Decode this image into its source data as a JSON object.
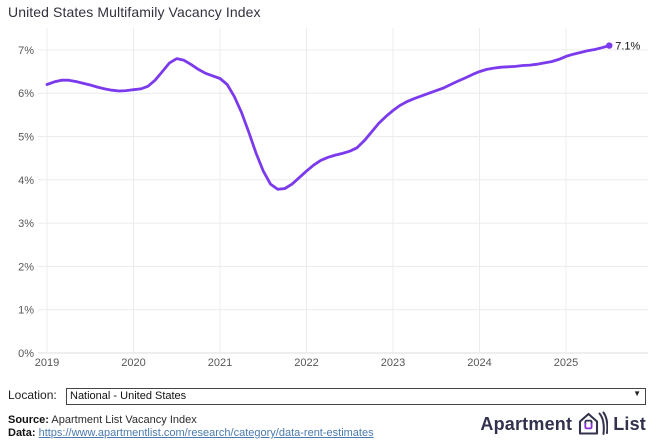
{
  "title": "United States Multifamily Vacancy Index",
  "chart_data": {
    "type": "line",
    "title": "United States Multifamily Vacancy Index",
    "series_name": "National - United States",
    "frequency": "monthly",
    "start_year": 2019,
    "start_month": 1,
    "values": [
      6.2,
      6.26,
      6.3,
      6.3,
      6.27,
      6.23,
      6.19,
      6.14,
      6.1,
      6.07,
      6.05,
      6.06,
      6.08,
      6.1,
      6.16,
      6.3,
      6.5,
      6.7,
      6.8,
      6.76,
      6.66,
      6.55,
      6.46,
      6.4,
      6.34,
      6.2,
      5.92,
      5.55,
      5.1,
      4.62,
      4.2,
      3.9,
      3.78,
      3.8,
      3.9,
      4.05,
      4.2,
      4.34,
      4.45,
      4.52,
      4.57,
      4.61,
      4.66,
      4.74,
      4.9,
      5.1,
      5.3,
      5.46,
      5.6,
      5.72,
      5.81,
      5.88,
      5.94,
      6.0,
      6.06,
      6.12,
      6.2,
      6.28,
      6.35,
      6.43,
      6.5,
      6.55,
      6.58,
      6.6,
      6.61,
      6.62,
      6.64,
      6.65,
      6.67,
      6.7,
      6.73,
      6.78,
      6.85,
      6.9,
      6.94,
      6.98,
      7.01,
      7.05,
      7.1
    ],
    "end_label": "7.1%",
    "last_value": 7.1,
    "x_ticks": [
      "2019",
      "2020",
      "2021",
      "2022",
      "2023",
      "2024",
      "2025"
    ],
    "y_ticks": [
      0,
      1,
      2,
      3,
      4,
      5,
      6,
      7
    ],
    "y_unit": "%",
    "ylim": [
      0,
      7.5
    ],
    "grid": true,
    "legend": false,
    "line_color": "#7c3aed",
    "grid_color": "#ececec",
    "zero_line_color": "#dcdcdc"
  },
  "controls": {
    "location_label": "Location:",
    "location_value": "National - United States"
  },
  "footer": {
    "source_label": "Source:",
    "source_text": " Apartment List Vacancy Index",
    "data_label": "Data:",
    "data_url": "https://www.apartmentlist.com/research/category/data-rent-estimates"
  },
  "branding": {
    "wordmark_left": "Apartment",
    "wordmark_right": "List",
    "logo_dark": "#32324e",
    "logo_purple": "#8b2fd6"
  }
}
